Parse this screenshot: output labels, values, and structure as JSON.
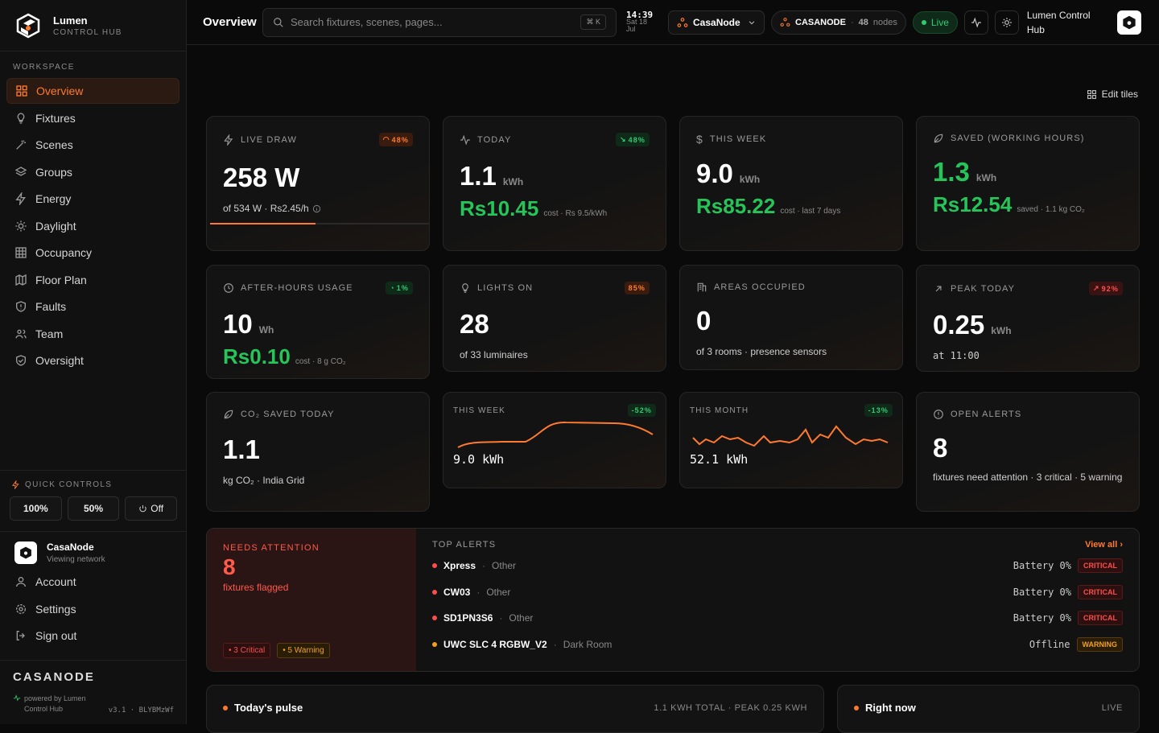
{
  "brand": {
    "name": "Lumen",
    "sub": "CONTROL HUB"
  },
  "sidebar": {
    "section": "WORKSPACE",
    "items": [
      {
        "label": "Overview",
        "icon": "grid-icon",
        "active": true
      },
      {
        "label": "Fixtures",
        "icon": "bulb-icon"
      },
      {
        "label": "Scenes",
        "icon": "wand-icon"
      },
      {
        "label": "Groups",
        "icon": "layers-icon"
      },
      {
        "label": "Energy",
        "icon": "bolt-icon"
      },
      {
        "label": "Daylight",
        "icon": "sun-icon"
      },
      {
        "label": "Occupancy",
        "icon": "table-icon"
      },
      {
        "label": "Floor Plan",
        "icon": "map-icon"
      },
      {
        "label": "Faults",
        "icon": "shield-alert-icon"
      },
      {
        "label": "Team",
        "icon": "users-icon"
      },
      {
        "label": "Oversight",
        "icon": "shield-check-icon"
      }
    ],
    "quick": {
      "label": "QUICK CONTROLS",
      "b1": "100%",
      "b2": "50%",
      "b3": "Off"
    },
    "account": {
      "name": "CasaNode",
      "sub": "Viewing network",
      "items": [
        "Account",
        "Settings",
        "Sign out"
      ]
    },
    "footer": {
      "brand": "CASANODE",
      "powered": "powered by Lumen Control Hub",
      "version": "v3.1 · BLYBMzWf"
    }
  },
  "topbar": {
    "title": "Overview",
    "search_placeholder": "Search fixtures, scenes, pages...",
    "kbd": "⌘ K",
    "time": "14:39",
    "date": "Sat 18 Jul",
    "site": "CasaNode",
    "network": "CASANODE",
    "nodes_count": "48",
    "nodes_label": "nodes",
    "live": "Live",
    "user": "Lumen Control Hub"
  },
  "main": {
    "edit_tiles": "Edit tiles"
  },
  "tiles": {
    "live": {
      "label": "LIVE DRAW",
      "badge": "48%",
      "value": "258 W",
      "sub": "of 534 W · Rs2.45/h",
      "progress": 0.48
    },
    "today": {
      "label": "TODAY",
      "badge": "48%",
      "value": "1.1",
      "unit": "kWh",
      "money": "Rs10.45",
      "note": "cost · Rs 9.5/kWh"
    },
    "week": {
      "label": "THIS WEEK",
      "value": "9.0",
      "unit": "kWh",
      "money": "Rs85.22",
      "note": "cost · last 7 days"
    },
    "saved": {
      "label": "SAVED (WORKING HOURS)",
      "value": "1.3",
      "unit": "kWh",
      "money": "Rs12.54",
      "note": "saved · 1.1 kg CO₂"
    },
    "after": {
      "label": "AFTER-HOURS USAGE",
      "badge": "1%",
      "value": "10",
      "unit": "Wh",
      "money": "Rs0.10",
      "note": "cost · 8 g CO₂"
    },
    "lights": {
      "label": "LIGHTS ON",
      "badge": "85%",
      "value": "28",
      "sub": "of 33 luminaires"
    },
    "areas": {
      "label": "AREAS OCCUPIED",
      "value": "0",
      "sub": "of 3 rooms · presence sensors"
    },
    "peak": {
      "label": "PEAK TODAY",
      "badge": "92%",
      "value": "0.25",
      "unit": "kWh",
      "sub": "at 11:00"
    },
    "co2": {
      "label": "CO₂ SAVED TODAY",
      "value": "1.1",
      "sub": "kg CO₂ · India Grid"
    },
    "weekspark": {
      "label": "THIS WEEK",
      "badge": "-52%",
      "value": "9.0 kWh"
    },
    "monthspark": {
      "label": "THIS MONTH",
      "badge": "-13%",
      "value": "52.1 kWh"
    },
    "alerts": {
      "label": "OPEN ALERTS",
      "value": "8",
      "sub": "fixtures need attention · 3 critical · 5 warning"
    }
  },
  "attention": {
    "label": "NEEDS ATTENTION",
    "count": "8",
    "sub": "fixtures flagged",
    "crit": "3 Critical",
    "warn": "5 Warning",
    "top_label": "TOP ALERTS",
    "view_all": "View all",
    "rows": [
      {
        "name": "Xpress",
        "area": "Other",
        "status": "Battery 0%",
        "sev": "CRITICAL"
      },
      {
        "name": "CW03",
        "area": "Other",
        "status": "Battery 0%",
        "sev": "CRITICAL"
      },
      {
        "name": "SD1PN3S6",
        "area": "Other",
        "status": "Battery 0%",
        "sev": "CRITICAL"
      },
      {
        "name": "UWC SLC 4 RGBW_V2",
        "area": "Dark Room",
        "status": "Offline",
        "sev": "WARNING"
      }
    ]
  },
  "pulse": {
    "title": "Today's pulse",
    "meta": "1.1 KWH TOTAL · PEAK 0.25 KWH"
  },
  "rightnow": {
    "title": "Right now",
    "meta": "LIVE"
  },
  "colors": {
    "accent": "#ff7a2f",
    "green": "#27c45a",
    "critical": "#ff4d4d",
    "warning": "#f0a020"
  }
}
